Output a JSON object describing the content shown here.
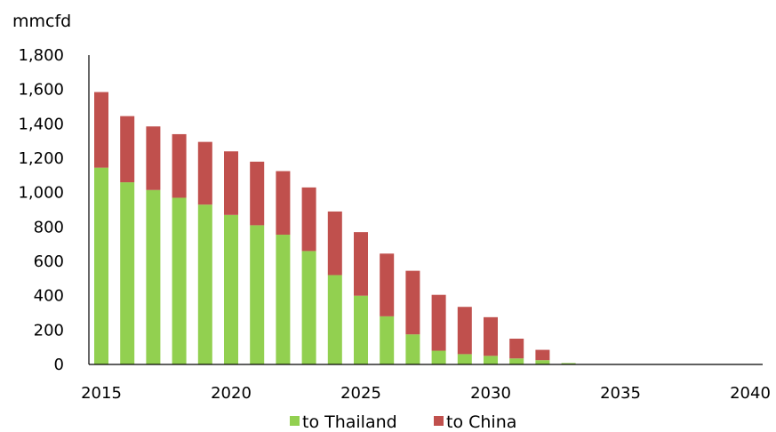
{
  "chart_data": {
    "type": "bar",
    "stacked": true,
    "title": "",
    "ylabel": "mmcfd",
    "xlabel": "",
    "ylim": [
      0,
      1800
    ],
    "yticks": [
      0,
      200,
      400,
      600,
      800,
      1000,
      1200,
      1400,
      1600,
      1800
    ],
    "ytick_labels": [
      "0",
      "200",
      "400",
      "600",
      "800",
      "1,000",
      "1,200",
      "1,400",
      "1,600",
      "1,800"
    ],
    "xlim": [
      2015,
      2040
    ],
    "xticks": [
      2015,
      2020,
      2025,
      2030,
      2035,
      2040
    ],
    "xtick_labels": [
      "2015",
      "2020",
      "2025",
      "2030",
      "2035",
      "2040"
    ],
    "categories": [
      2015,
      2016,
      2017,
      2018,
      2019,
      2020,
      2021,
      2022,
      2023,
      2024,
      2025,
      2026,
      2027,
      2028,
      2029,
      2030,
      2031,
      2032,
      2033,
      2034,
      2035,
      2036,
      2037,
      2038,
      2039,
      2040
    ],
    "series": [
      {
        "name": "to Thailand",
        "color": "#92d050",
        "values": [
          1145,
          1060,
          1015,
          970,
          930,
          870,
          810,
          755,
          660,
          520,
          400,
          280,
          175,
          80,
          60,
          50,
          35,
          25,
          8,
          0,
          0,
          0,
          0,
          0,
          0,
          0
        ]
      },
      {
        "name": "to China",
        "color": "#c0504d",
        "values": [
          440,
          385,
          370,
          370,
          365,
          370,
          370,
          370,
          370,
          370,
          370,
          365,
          370,
          325,
          275,
          225,
          115,
          60,
          0,
          0,
          0,
          0,
          0,
          0,
          0,
          0
        ]
      }
    ],
    "legend": "bottom-center",
    "grid": false
  }
}
